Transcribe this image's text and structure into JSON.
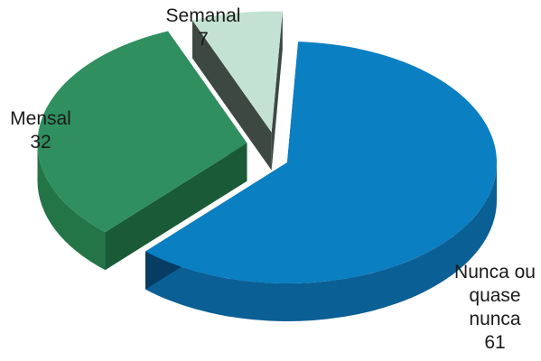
{
  "chart_data": {
    "type": "pie",
    "style": "3d-exploded",
    "slices": [
      {
        "label": "Nunca ou quase nunca",
        "label_lines": [
          "Nunca ou",
          "quase",
          "nunca"
        ],
        "value": 61,
        "value_label": "61",
        "top_color": "#0a7fc2",
        "side_color": "#0a5f94",
        "shade_color": "#073d63"
      },
      {
        "label": "Mensal",
        "label_lines": [
          "Mensal"
        ],
        "value": 32,
        "value_label": "32",
        "top_color": "#2f8f5f",
        "side_color": "#237547",
        "shade_color": "#1a5a36"
      },
      {
        "label": "Semanal",
        "label_lines": [
          "Semanal"
        ],
        "value": 7,
        "value_label": "7",
        "top_color": "#c4e2d3",
        "side_color": "#54605a",
        "shade_color": "#3e4843"
      }
    ]
  }
}
